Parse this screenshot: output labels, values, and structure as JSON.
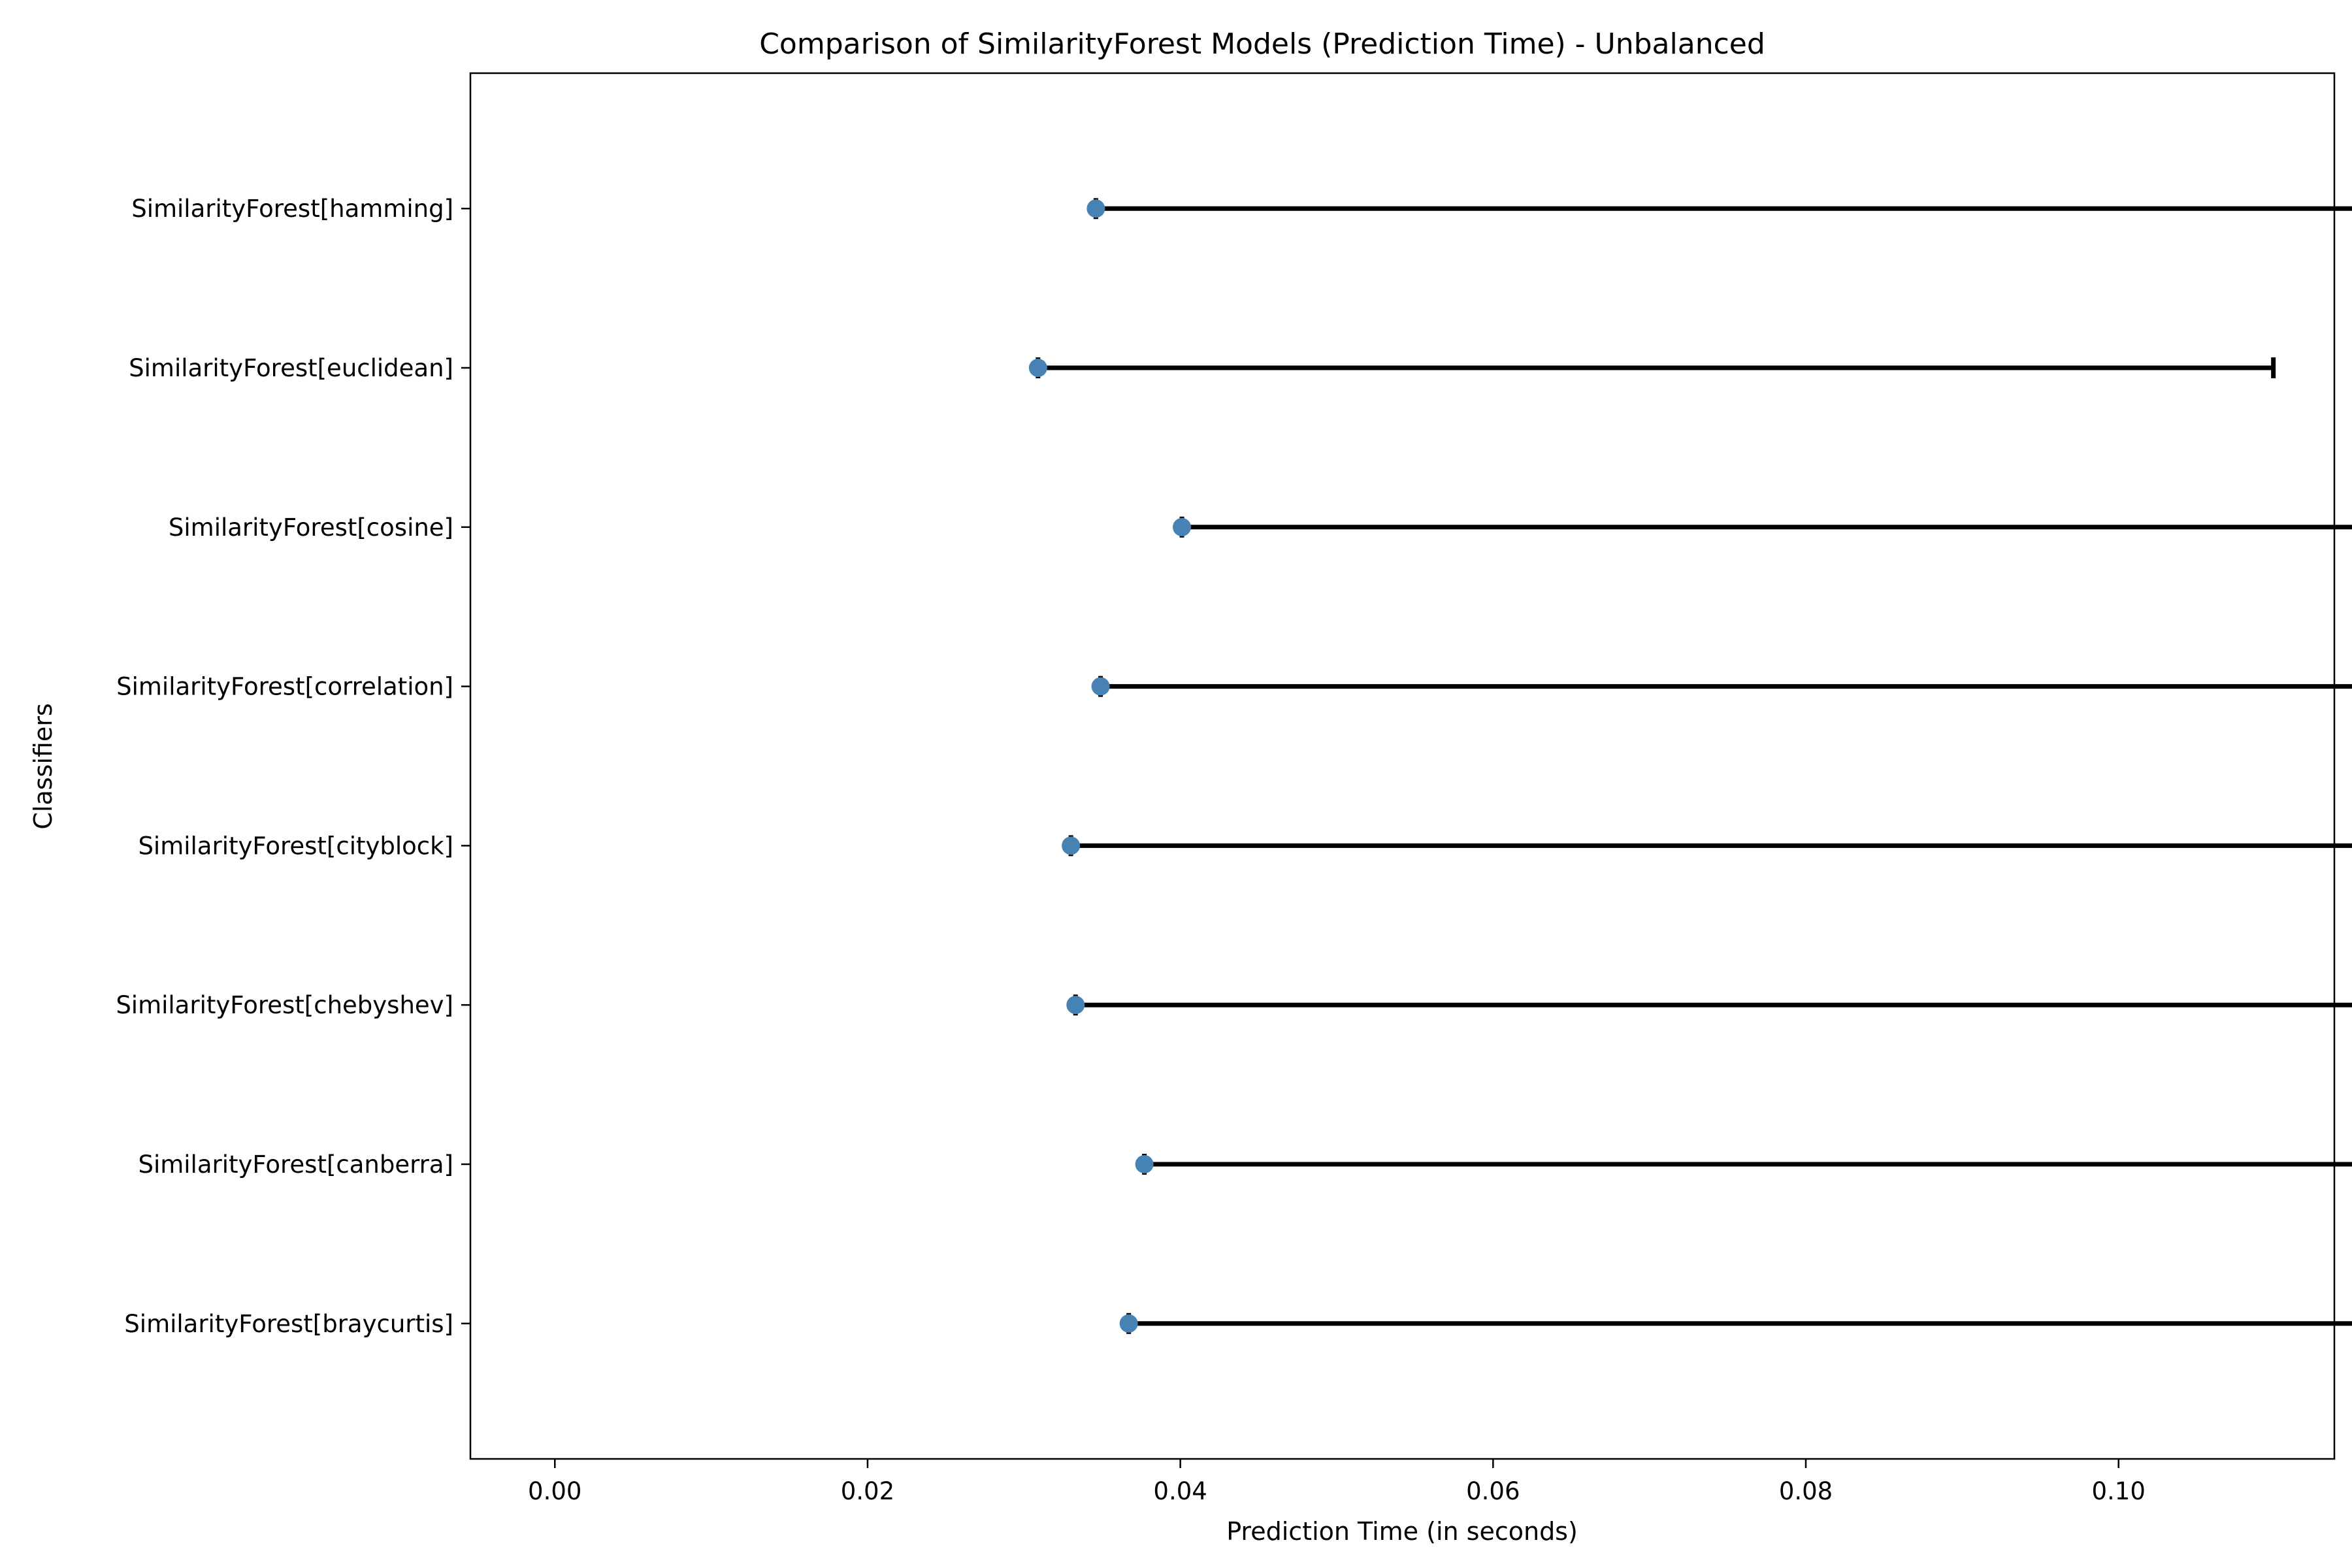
{
  "chart_data": {
    "type": "errorbar",
    "orientation": "horizontal",
    "title": "Comparison of SimilarityForest Models (Prediction Time) - Unbalanced",
    "xlabel": "Prediction Time (in seconds)",
    "ylabel": "Classifiers",
    "xlim": [
      -0.0054,
      0.1138
    ],
    "xticks": [
      0.0,
      0.02,
      0.04,
      0.06,
      0.08,
      0.1
    ],
    "xtick_labels": [
      "0.00",
      "0.02",
      "0.04",
      "0.06",
      "0.08",
      "0.10"
    ],
    "categories": [
      "SimilarityForest[hamming]",
      "SimilarityForest[euclidean]",
      "SimilarityForest[cosine]",
      "SimilarityForest[correlation]",
      "SimilarityForest[cityblock]",
      "SimilarityForest[chebyshev]",
      "SimilarityForest[canberra]",
      "SimilarityForest[braycurtis]"
    ],
    "values": [
      0.0346,
      0.0309,
      0.0401,
      0.0349,
      0.033,
      0.0333,
      0.0377,
      0.0367
    ],
    "err_low": [
      0.0,
      0.0,
      0.0,
      0.0,
      0.0,
      0.0,
      0.0,
      0.0
    ],
    "err_high": [
      0.0893,
      0.079,
      0.1086,
      0.0914,
      0.0851,
      0.0868,
      0.0986,
      0.0963
    ],
    "grid": false,
    "marker_color": "#4682b4",
    "errorbar_color": "#000000"
  }
}
